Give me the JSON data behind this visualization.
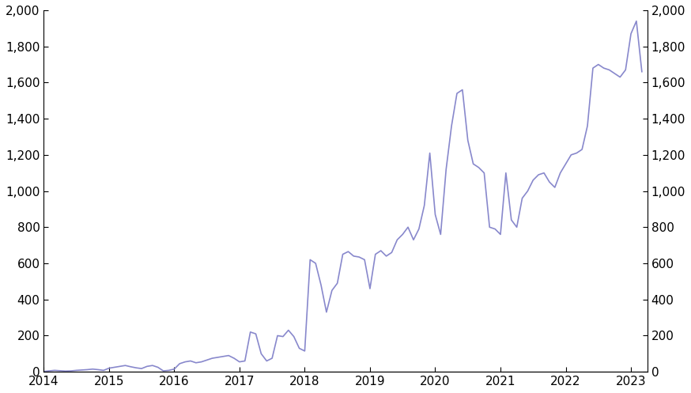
{
  "line_color": "#8888cc",
  "background_color": "#ffffff",
  "ylim": [
    0,
    2000
  ],
  "yticks": [
    0,
    200,
    400,
    600,
    800,
    1000,
    1200,
    1400,
    1600,
    1800,
    2000
  ],
  "xlim_start": 2014.0,
  "xlim_end": 2023.25,
  "xtick_labels": [
    "2014",
    "2015",
    "2016",
    "2017",
    "2018",
    "2019",
    "2020",
    "2021",
    "2022",
    "2023"
  ],
  "data": [
    [
      2014.0,
      2
    ],
    [
      2014.083,
      5
    ],
    [
      2014.167,
      8
    ],
    [
      2014.25,
      6
    ],
    [
      2014.333,
      4
    ],
    [
      2014.417,
      5
    ],
    [
      2014.5,
      8
    ],
    [
      2014.583,
      10
    ],
    [
      2014.667,
      12
    ],
    [
      2014.75,
      15
    ],
    [
      2014.833,
      12
    ],
    [
      2014.917,
      8
    ],
    [
      2015.0,
      20
    ],
    [
      2015.083,
      25
    ],
    [
      2015.167,
      30
    ],
    [
      2015.25,
      35
    ],
    [
      2015.333,
      28
    ],
    [
      2015.417,
      22
    ],
    [
      2015.5,
      18
    ],
    [
      2015.583,
      30
    ],
    [
      2015.667,
      35
    ],
    [
      2015.75,
      25
    ],
    [
      2015.833,
      5
    ],
    [
      2015.917,
      8
    ],
    [
      2016.0,
      15
    ],
    [
      2016.083,
      45
    ],
    [
      2016.167,
      55
    ],
    [
      2016.25,
      60
    ],
    [
      2016.333,
      50
    ],
    [
      2016.417,
      55
    ],
    [
      2016.5,
      65
    ],
    [
      2016.583,
      75
    ],
    [
      2016.667,
      80
    ],
    [
      2016.75,
      85
    ],
    [
      2016.833,
      90
    ],
    [
      2016.917,
      75
    ],
    [
      2017.0,
      55
    ],
    [
      2017.083,
      60
    ],
    [
      2017.167,
      220
    ],
    [
      2017.25,
      210
    ],
    [
      2017.333,
      100
    ],
    [
      2017.417,
      60
    ],
    [
      2017.5,
      75
    ],
    [
      2017.583,
      200
    ],
    [
      2017.667,
      195
    ],
    [
      2017.75,
      230
    ],
    [
      2017.833,
      195
    ],
    [
      2017.917,
      130
    ],
    [
      2018.0,
      115
    ],
    [
      2018.083,
      620
    ],
    [
      2018.167,
      600
    ],
    [
      2018.25,
      480
    ],
    [
      2018.333,
      330
    ],
    [
      2018.417,
      450
    ],
    [
      2018.5,
      490
    ],
    [
      2018.583,
      650
    ],
    [
      2018.667,
      665
    ],
    [
      2018.75,
      640
    ],
    [
      2018.833,
      635
    ],
    [
      2018.917,
      620
    ],
    [
      2019.0,
      460
    ],
    [
      2019.083,
      650
    ],
    [
      2019.167,
      670
    ],
    [
      2019.25,
      640
    ],
    [
      2019.333,
      660
    ],
    [
      2019.417,
      730
    ],
    [
      2019.5,
      760
    ],
    [
      2019.583,
      800
    ],
    [
      2019.667,
      730
    ],
    [
      2019.75,
      790
    ],
    [
      2019.833,
      920
    ],
    [
      2019.917,
      1210
    ],
    [
      2020.0,
      870
    ],
    [
      2020.083,
      760
    ],
    [
      2020.167,
      1120
    ],
    [
      2020.25,
      1360
    ],
    [
      2020.333,
      1540
    ],
    [
      2020.417,
      1560
    ],
    [
      2020.5,
      1280
    ],
    [
      2020.583,
      1150
    ],
    [
      2020.667,
      1130
    ],
    [
      2020.75,
      1100
    ],
    [
      2020.833,
      800
    ],
    [
      2020.917,
      790
    ],
    [
      2021.0,
      760
    ],
    [
      2021.083,
      1100
    ],
    [
      2021.167,
      840
    ],
    [
      2021.25,
      800
    ],
    [
      2021.333,
      960
    ],
    [
      2021.417,
      1000
    ],
    [
      2021.5,
      1060
    ],
    [
      2021.583,
      1090
    ],
    [
      2021.667,
      1100
    ],
    [
      2021.75,
      1050
    ],
    [
      2021.833,
      1020
    ],
    [
      2021.917,
      1100
    ],
    [
      2022.0,
      1150
    ],
    [
      2022.083,
      1200
    ],
    [
      2022.167,
      1210
    ],
    [
      2022.25,
      1230
    ],
    [
      2022.333,
      1360
    ],
    [
      2022.417,
      1680
    ],
    [
      2022.5,
      1700
    ],
    [
      2022.583,
      1680
    ],
    [
      2022.667,
      1670
    ],
    [
      2022.75,
      1650
    ],
    [
      2022.833,
      1630
    ],
    [
      2022.917,
      1670
    ],
    [
      2023.0,
      1870
    ],
    [
      2023.083,
      1940
    ],
    [
      2023.167,
      1660
    ]
  ]
}
